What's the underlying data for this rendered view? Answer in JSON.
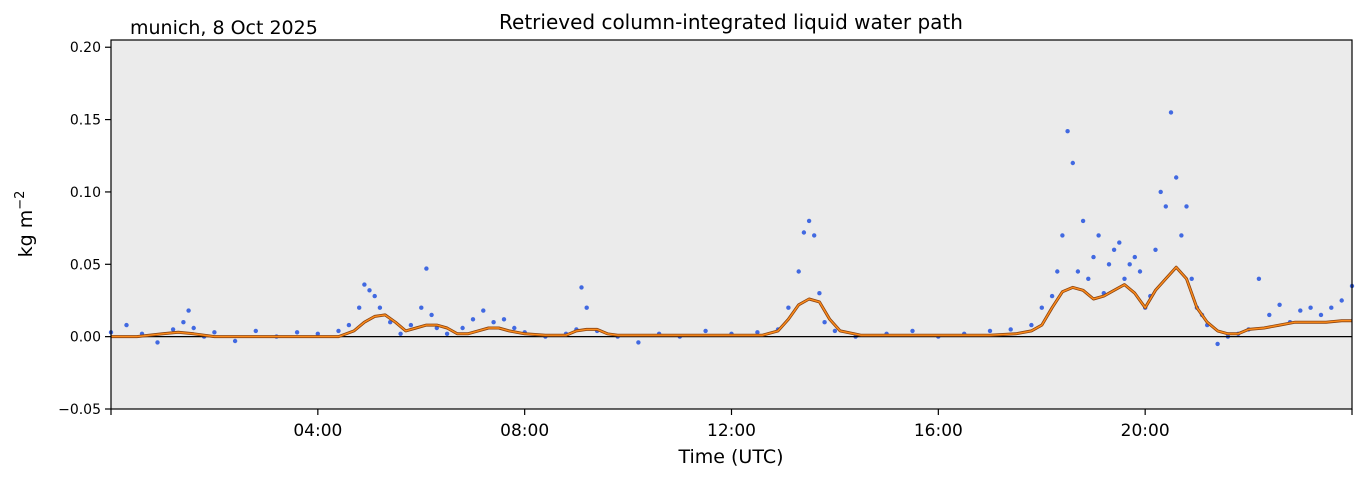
{
  "chart_data": {
    "type": "scatter",
    "title": "Retrieved column-integrated liquid water path",
    "subtitle": "munich, 8 Oct 2025",
    "xlabel": "Time (UTC)",
    "ylabel": "kg m",
    "ylabel_exponent": "−2",
    "xlim": [
      0,
      24
    ],
    "ylim": [
      -0.05,
      0.205
    ],
    "x_unit": "hours UTC",
    "grid": false,
    "x_ticks": [
      {
        "value": 4,
        "label": "04:00"
      },
      {
        "value": 8,
        "label": "08:00"
      },
      {
        "value": 12,
        "label": "12:00"
      },
      {
        "value": 16,
        "label": "16:00"
      },
      {
        "value": 20,
        "label": "20:00"
      }
    ],
    "y_ticks": [
      {
        "value": -0.05,
        "label": "−0.05"
      },
      {
        "value": 0.0,
        "label": "0.00"
      },
      {
        "value": 0.05,
        "label": "0.05"
      },
      {
        "value": 0.1,
        "label": "0.10"
      },
      {
        "value": 0.15,
        "label": "0.15"
      },
      {
        "value": 0.2,
        "label": "0.20"
      }
    ],
    "reference_line": {
      "y": 0.0
    },
    "series": [
      {
        "kind": "scatter",
        "color": "#4169e1",
        "x": [
          0.0,
          0.3,
          0.6,
          0.9,
          1.2,
          1.4,
          1.5,
          1.6,
          1.8,
          2.0,
          2.4,
          2.8,
          3.2,
          3.6,
          4.0,
          4.4,
          4.6,
          4.8,
          4.9,
          5.0,
          5.1,
          5.2,
          5.4,
          5.6,
          5.8,
          6.0,
          6.1,
          6.2,
          6.3,
          6.5,
          6.8,
          7.0,
          7.2,
          7.4,
          7.6,
          7.8,
          8.0,
          8.4,
          8.8,
          9.0,
          9.1,
          9.2,
          9.4,
          9.8,
          10.2,
          10.6,
          11.0,
          11.5,
          12.0,
          12.5,
          12.9,
          13.1,
          13.3,
          13.4,
          13.5,
          13.6,
          13.7,
          13.8,
          14.0,
          14.4,
          15.0,
          15.5,
          16.0,
          16.5,
          17.0,
          17.4,
          17.8,
          18.0,
          18.2,
          18.3,
          18.4,
          18.5,
          18.6,
          18.7,
          18.8,
          18.9,
          19.0,
          19.1,
          19.2,
          19.3,
          19.4,
          19.5,
          19.6,
          19.7,
          19.8,
          19.9,
          20.0,
          20.1,
          20.2,
          20.3,
          20.4,
          20.5,
          20.6,
          20.7,
          20.8,
          20.9,
          21.0,
          21.1,
          21.2,
          21.4,
          21.6,
          21.8,
          22.0,
          22.2,
          22.4,
          22.6,
          22.8,
          23.0,
          23.2,
          23.4,
          23.6,
          23.8,
          24.0
        ],
        "y": [
          0.003,
          0.008,
          0.002,
          -0.004,
          0.005,
          0.01,
          0.018,
          0.006,
          0.0,
          0.003,
          -0.003,
          0.004,
          0.0,
          0.003,
          0.002,
          0.004,
          0.008,
          0.02,
          0.036,
          0.032,
          0.028,
          0.02,
          0.01,
          0.002,
          0.008,
          0.02,
          0.047,
          0.015,
          0.006,
          0.002,
          0.006,
          0.012,
          0.018,
          0.01,
          0.012,
          0.006,
          0.003,
          0.0,
          0.002,
          0.005,
          0.034,
          0.02,
          0.004,
          0.0,
          -0.004,
          0.002,
          0.0,
          0.004,
          0.002,
          0.003,
          0.005,
          0.02,
          0.045,
          0.072,
          0.08,
          0.07,
          0.03,
          0.01,
          0.004,
          0.0,
          0.002,
          0.004,
          0.0,
          0.002,
          0.004,
          0.005,
          0.008,
          0.02,
          0.028,
          0.045,
          0.07,
          0.142,
          0.12,
          0.045,
          0.08,
          0.04,
          0.055,
          0.07,
          0.03,
          0.05,
          0.06,
          0.065,
          0.04,
          0.05,
          0.055,
          0.045,
          0.02,
          0.028,
          0.06,
          0.1,
          0.09,
          0.155,
          0.11,
          0.07,
          0.09,
          0.04,
          0.02,
          0.015,
          0.008,
          -0.005,
          0.0,
          0.002,
          0.005,
          0.04,
          0.015,
          0.022,
          0.01,
          0.018,
          0.02,
          0.015,
          0.02,
          0.025,
          0.035
        ]
      },
      {
        "kind": "line",
        "color": "#ff8c1a",
        "outline_color": "#8b4513",
        "x": [
          0.0,
          0.5,
          1.0,
          1.3,
          1.6,
          2.0,
          2.5,
          3.0,
          3.5,
          4.0,
          4.4,
          4.7,
          4.9,
          5.1,
          5.3,
          5.5,
          5.7,
          5.9,
          6.1,
          6.3,
          6.5,
          6.7,
          6.9,
          7.1,
          7.3,
          7.5,
          7.7,
          8.0,
          8.4,
          8.8,
          9.0,
          9.2,
          9.4,
          9.6,
          9.8,
          10.2,
          10.8,
          11.4,
          12.0,
          12.6,
          12.9,
          13.1,
          13.3,
          13.5,
          13.7,
          13.9,
          14.1,
          14.5,
          15.0,
          15.5,
          16.0,
          16.5,
          17.0,
          17.5,
          17.8,
          18.0,
          18.2,
          18.4,
          18.6,
          18.8,
          19.0,
          19.2,
          19.4,
          19.6,
          19.8,
          20.0,
          20.2,
          20.4,
          20.6,
          20.8,
          21.0,
          21.2,
          21.4,
          21.6,
          21.8,
          22.0,
          22.3,
          22.6,
          22.9,
          23.2,
          23.5,
          23.8,
          24.0
        ],
        "y": [
          0.0,
          0.0,
          0.002,
          0.003,
          0.002,
          0.0,
          0.0,
          0.0,
          0.0,
          0.0,
          0.0,
          0.004,
          0.01,
          0.014,
          0.015,
          0.01,
          0.004,
          0.006,
          0.008,
          0.008,
          0.006,
          0.002,
          0.002,
          0.004,
          0.006,
          0.006,
          0.004,
          0.002,
          0.001,
          0.001,
          0.004,
          0.005,
          0.005,
          0.002,
          0.001,
          0.001,
          0.001,
          0.001,
          0.001,
          0.001,
          0.004,
          0.012,
          0.022,
          0.026,
          0.024,
          0.012,
          0.004,
          0.001,
          0.001,
          0.001,
          0.001,
          0.001,
          0.001,
          0.002,
          0.004,
          0.008,
          0.02,
          0.031,
          0.034,
          0.032,
          0.026,
          0.028,
          0.032,
          0.036,
          0.03,
          0.02,
          0.032,
          0.04,
          0.048,
          0.04,
          0.02,
          0.01,
          0.004,
          0.002,
          0.002,
          0.005,
          0.006,
          0.008,
          0.01,
          0.01,
          0.01,
          0.011,
          0.011
        ]
      }
    ]
  }
}
